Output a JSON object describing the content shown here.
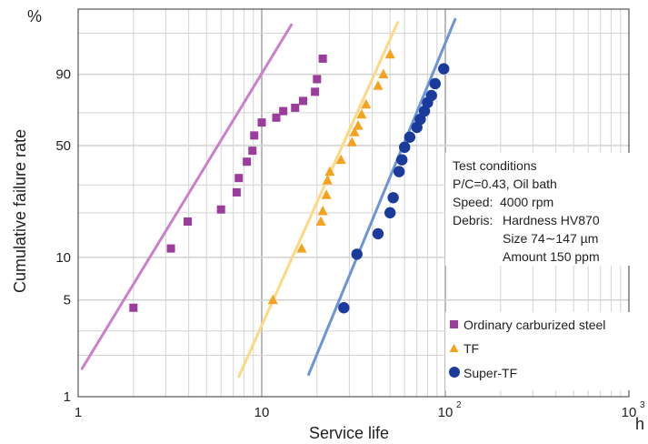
{
  "chart_data": {
    "type": "scatter",
    "title": "",
    "xlabel": "Service life",
    "xunit": "h",
    "ylabel": "Cumulative failure rate",
    "yunit": "%",
    "x_scale": "log",
    "y_scale": "weibull",
    "xlim": [
      1,
      1000
    ],
    "ylim": [
      1,
      99.9
    ],
    "x_ticks": [
      {
        "value": 1,
        "label": "1"
      },
      {
        "value": 10,
        "label": "10"
      },
      {
        "value": 100,
        "label": "10",
        "exp": "2"
      },
      {
        "value": 1000,
        "label": "10",
        "exp": "3"
      }
    ],
    "y_ticks": [
      {
        "value": 1,
        "label": "1"
      },
      {
        "value": 5,
        "label": "5"
      },
      {
        "value": 10,
        "label": "10"
      },
      {
        "value": 50,
        "label": "50"
      },
      {
        "value": 90,
        "label": "90"
      }
    ],
    "grid": true,
    "legend_position": "bottom-right",
    "series": [
      {
        "name": "Ordinary carburized steel",
        "marker": "square",
        "color": "#9c3d9e",
        "fit_color": "#cc7fcc",
        "fit": [
          [
            1.05,
            1.6
          ],
          [
            14.5,
            99.5
          ]
        ],
        "points": [
          [
            2.0,
            4.4
          ],
          [
            3.2,
            11.5
          ],
          [
            3.95,
            17.5
          ],
          [
            6.0,
            21
          ],
          [
            7.3,
            27
          ],
          [
            7.5,
            33
          ],
          [
            8.3,
            41
          ],
          [
            8.9,
            47
          ],
          [
            9.1,
            56
          ],
          [
            10.0,
            64
          ],
          [
            12.0,
            67
          ],
          [
            13.1,
            71
          ],
          [
            15.2,
            73
          ],
          [
            16.8,
            77
          ],
          [
            19.5,
            82
          ],
          [
            20.0,
            88
          ],
          [
            21.5,
            95
          ]
        ]
      },
      {
        "name": "TF",
        "marker": "triangle",
        "color": "#f5a21e",
        "fit_color": "#ffd884",
        "fit": [
          [
            7.5,
            1.4
          ],
          [
            55.0,
            99.6
          ]
        ],
        "points": [
          [
            11.5,
            5.0
          ],
          [
            16.5,
            11.5
          ],
          [
            21.0,
            17.5
          ],
          [
            21.5,
            20.5
          ],
          [
            22.5,
            26
          ],
          [
            22.8,
            32
          ],
          [
            23.5,
            36
          ],
          [
            27.0,
            42
          ],
          [
            31.0,
            52
          ],
          [
            32.0,
            58
          ],
          [
            33.5,
            62
          ],
          [
            35.0,
            69
          ],
          [
            37.0,
            75
          ],
          [
            43.0,
            85
          ],
          [
            46.0,
            90
          ],
          [
            50.0,
            96
          ]
        ]
      },
      {
        "name": "Super-TF",
        "marker": "circle",
        "color": "#1a3a9c",
        "fit_color": "#6b95d6",
        "fit": [
          [
            18.0,
            1.45
          ],
          [
            113.0,
            99.7
          ]
        ],
        "points": [
          [
            28.0,
            4.4
          ],
          [
            33.0,
            10.5
          ],
          [
            43.0,
            14.5
          ],
          [
            50.0,
            20
          ],
          [
            52.0,
            25
          ],
          [
            56.0,
            36
          ],
          [
            58.0,
            42
          ],
          [
            60.0,
            49
          ],
          [
            64.0,
            55
          ],
          [
            70.0,
            61
          ],
          [
            73.0,
            66
          ],
          [
            77.0,
            71
          ],
          [
            80.0,
            76
          ],
          [
            84.0,
            80
          ],
          [
            88.0,
            86
          ],
          [
            98.0,
            92
          ]
        ]
      }
    ],
    "annotation": {
      "lines": [
        {
          "label": "Test conditions",
          "value": ""
        },
        {
          "label": "P/C=0.43, Oil bath",
          "value": ""
        },
        {
          "label": "Speed:",
          "value": "4000 rpm"
        },
        {
          "label": "Debris:",
          "value": "Hardness  HV870"
        },
        {
          "label": "",
          "value": "Size  74∼147 µm"
        },
        {
          "label": "",
          "value": "Amount   150 ppm"
        }
      ]
    }
  }
}
